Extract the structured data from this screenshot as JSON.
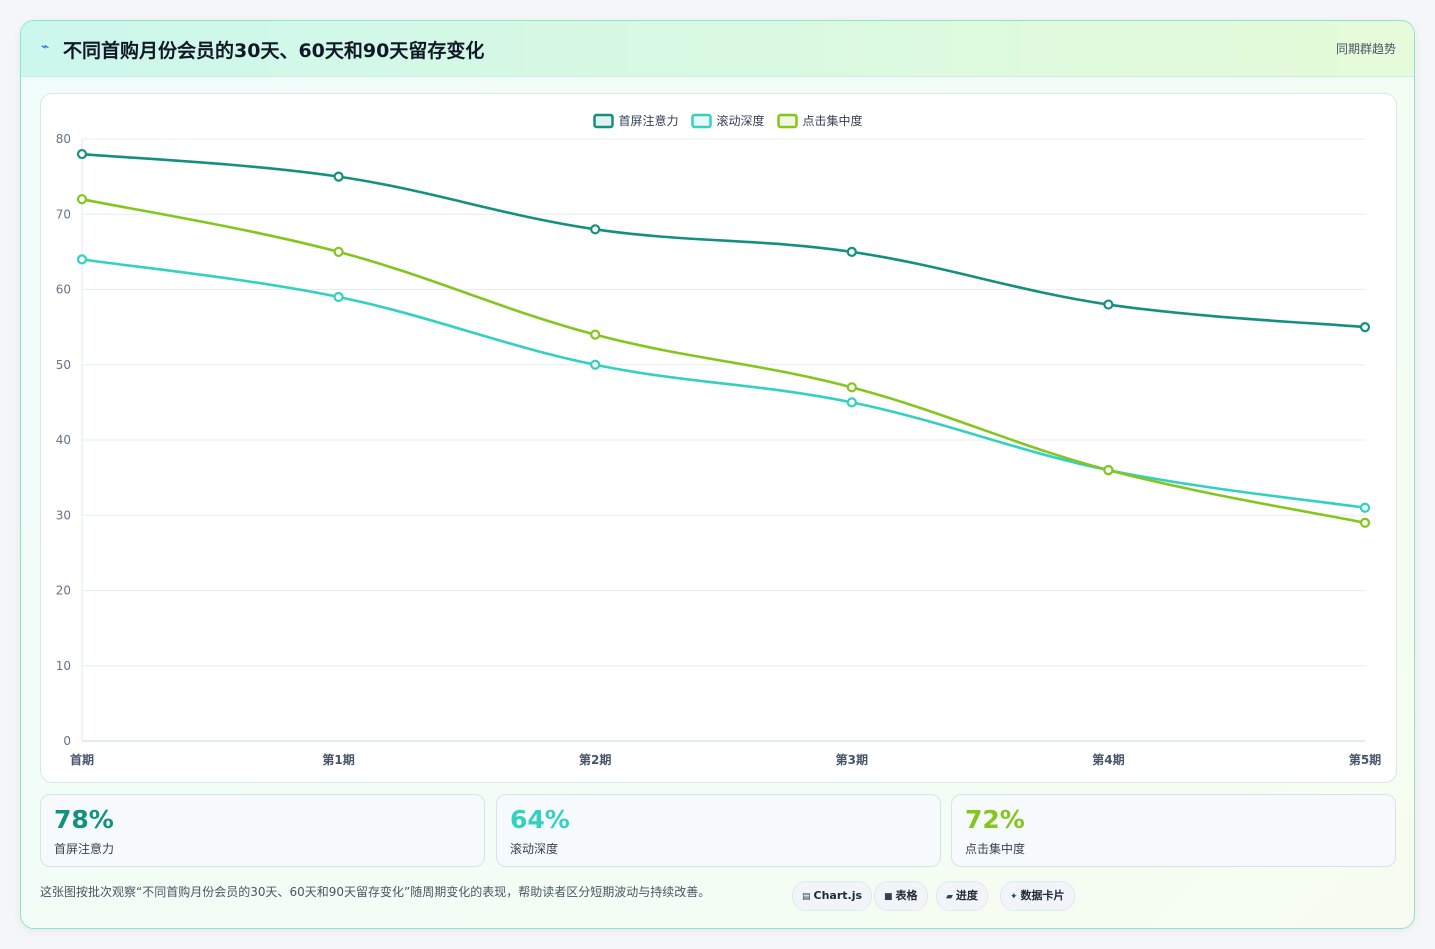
{
  "header": {
    "icon": "sparkline-icon",
    "icon_glyph": "⌁",
    "title": "不同首购月份会员的30天、60天和90天留存变化",
    "right_label": "同期群趋势"
  },
  "chart_data": {
    "type": "line",
    "title": "",
    "xlabel": "",
    "ylabel": "",
    "categories": [
      "首期",
      "第1期",
      "第2期",
      "第3期",
      "第4期",
      "第5期"
    ],
    "ylim": [
      0,
      80
    ],
    "yticks": [
      0,
      10,
      20,
      30,
      40,
      50,
      60,
      70,
      80
    ],
    "grid": true,
    "legend_position": "top-center",
    "series": [
      {
        "name": "首屏注意力",
        "color": "#13907f",
        "values": [
          78,
          75,
          68,
          65,
          58,
          55
        ]
      },
      {
        "name": "滚动深度",
        "color": "#33d1c0",
        "values": [
          64,
          59,
          50,
          45,
          36,
          31
        ]
      },
      {
        "name": "点击集中度",
        "color": "#84c61d",
        "values": [
          72,
          65,
          54,
          47,
          36,
          29
        ]
      }
    ]
  },
  "stats": [
    {
      "value": "78%",
      "label": "首屏注意力",
      "color": "#13907f"
    },
    {
      "value": "64%",
      "label": "滚动深度",
      "color": "#33d1c0"
    },
    {
      "value": "72%",
      "label": "点击集中度",
      "color": "#84c61d"
    }
  ],
  "footer": {
    "text": "这张图按批次观察“不同首购月份会员的30天、60天和90天留存变化”随周期变化的表现，帮助读者区分短期波动与持续改善。",
    "chips": [
      {
        "icon": "chart-icon",
        "glyph": "▤",
        "label": "Chart.js"
      },
      {
        "icon": "table-icon",
        "glyph": "■",
        "label": "表格"
      },
      {
        "icon": "progress-icon",
        "glyph": "▰",
        "label": "进度"
      },
      {
        "icon": "sparkle-icon",
        "glyph": "✦",
        "label": "数据卡片"
      }
    ]
  }
}
